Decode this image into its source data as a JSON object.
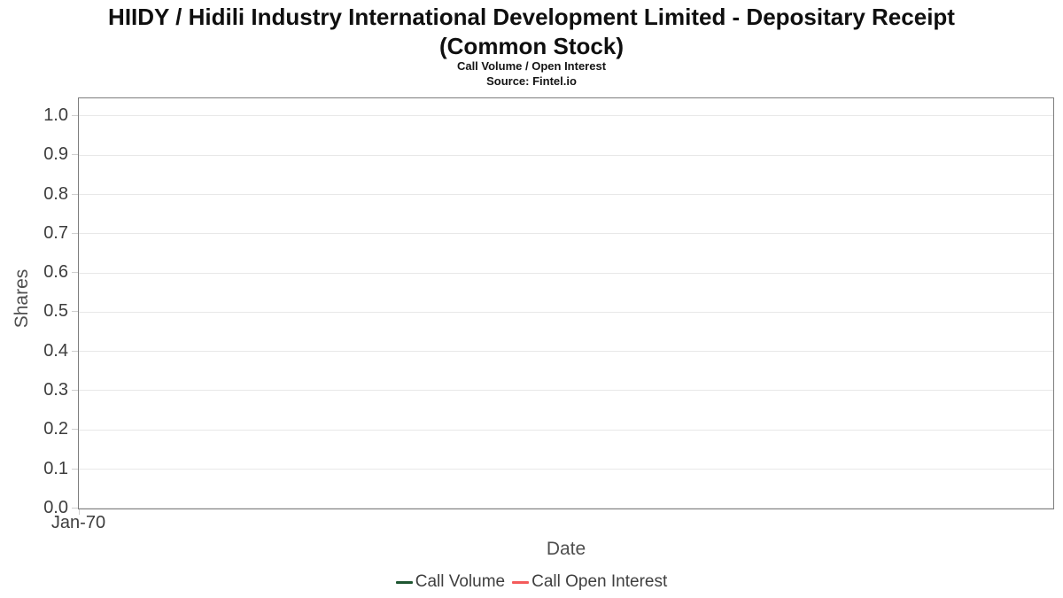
{
  "header": {
    "title_line1": "HIIDY / Hidili Industry International Development Limited - Depositary Receipt",
    "title_line2": "(Common Stock)",
    "subtitle": "Call Volume / Open Interest",
    "source": "Source: Fintel.io"
  },
  "chart_data": {
    "type": "line",
    "title": "HIIDY / Hidili Industry International Development Limited - Depositary Receipt (Common Stock)",
    "subtitle": "Call Volume / Open Interest",
    "source": "Source: Fintel.io",
    "xlabel": "Date",
    "ylabel": "Shares",
    "x_ticks": [
      "Jan-70"
    ],
    "y_ticks": [
      0.0,
      0.1,
      0.2,
      0.3,
      0.4,
      0.5,
      0.6,
      0.7,
      0.8,
      0.9,
      1.0
    ],
    "ylim": [
      -0.005,
      1.045
    ],
    "grid": "horizontal",
    "legend_position": "bottom-center",
    "series": [
      {
        "name": "Call Volume",
        "color": "#1e5631",
        "x": [],
        "values": []
      },
      {
        "name": "Call Open Interest",
        "color": "#f45b5b",
        "x": [],
        "values": []
      }
    ]
  },
  "colors": {
    "call_volume": "#1e5631",
    "call_open_interest": "#f45b5b",
    "plot_border": "#7d7d7d",
    "gridline": "#e8e8e8",
    "tick_mark": "#cfcfcf",
    "tick_text": "#3d3d3d",
    "axis_title_text": "#4f4f4f",
    "title_text": "#0f0f0f"
  }
}
